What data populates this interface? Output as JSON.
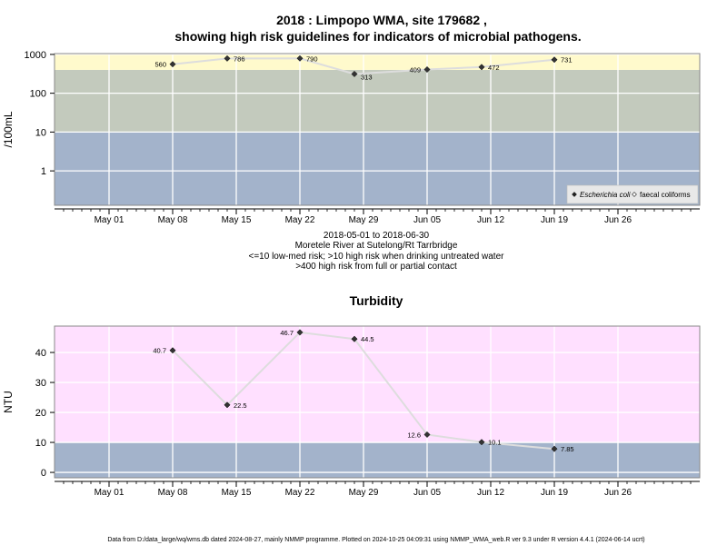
{
  "figure": {
    "title_line1": "2018 : Limpopo WMA, site 179682 ,",
    "title_line2": "showing high risk guidelines for indicators of microbial pathogens.",
    "subtitle_lines": [
      "2018-05-01 to 2018-06-30",
      "Moretele River at Sutelong/Rt Tarrbridge",
      "<=10 low-med risk; >10 high risk when drinking untreated water",
      ">400 high risk from full or partial contact"
    ],
    "footer": "Data from D:/data_large/wq/wms.db dated 2024-08-27, mainly NMMP programme. Plotted on 2024-10-25 04:09:31 using NMMP_WMA_web.R ver 9.3 under R version 4.4.1 (2024-06-14 ucrt)"
  },
  "colors": {
    "band_low": "#a3b3cb",
    "band_mid": "#c3cabd",
    "band_high": "#fffacc",
    "turbidity_high": "#ffe0ff",
    "line": "#dddddd",
    "marker": "#333333"
  },
  "chart_data": [
    {
      "type": "line",
      "title": "",
      "ylabel": "/100mL",
      "y_scale": "log",
      "ylim": [
        0.13,
        1050
      ],
      "xlim": [
        "2018-04-25",
        "2018-07-05"
      ],
      "x_ticks": [
        "May 01",
        "May 08",
        "May 15",
        "May 22",
        "May 29",
        "Jun 05",
        "Jun 12",
        "Jun 19",
        "Jun 26"
      ],
      "x_tick_dates": [
        "2018-05-01",
        "2018-05-08",
        "2018-05-15",
        "2018-05-22",
        "2018-05-29",
        "2018-06-05",
        "2018-06-12",
        "2018-06-19",
        "2018-06-26"
      ],
      "y_ticks": [
        "1",
        "10",
        "100",
        "1000"
      ],
      "y_tick_values": [
        1,
        10,
        100,
        1000
      ],
      "bands": [
        {
          "from": 0.13,
          "to": 10,
          "color": "#a3b3cb"
        },
        {
          "from": 10,
          "to": 400,
          "color": "#c3cabd"
        },
        {
          "from": 400,
          "to": 1050,
          "color": "#fffacc"
        }
      ],
      "grid": true,
      "legend_position": "bottom-right",
      "legend": [
        {
          "label": "Escherichia coli",
          "italic": true,
          "marker": "filled-diamond"
        },
        {
          "label": "faecal coliforms",
          "italic": false,
          "marker": "open-diamond"
        }
      ],
      "series": [
        {
          "name": "Escherichia coli",
          "x": [
            "2018-05-08",
            "2018-05-14",
            "2018-05-22",
            "2018-05-28",
            "2018-06-05",
            "2018-06-11",
            "2018-06-19"
          ],
          "values": [
            560,
            786,
            790,
            313,
            409,
            472,
            731
          ],
          "labels": [
            "560",
            "786",
            "790",
            "313",
            "409",
            "472",
            "731"
          ]
        }
      ]
    },
    {
      "type": "line",
      "title": "Turbidity",
      "ylabel": "NTU",
      "y_scale": "linear",
      "ylim": [
        -1.8,
        48.8
      ],
      "xlim": [
        "2018-04-25",
        "2018-07-05"
      ],
      "x_ticks": [
        "May 01",
        "May 08",
        "May 15",
        "May 22",
        "May 29",
        "Jun 05",
        "Jun 12",
        "Jun 19",
        "Jun 26"
      ],
      "x_tick_dates": [
        "2018-05-01",
        "2018-05-08",
        "2018-05-15",
        "2018-05-22",
        "2018-05-29",
        "2018-06-05",
        "2018-06-12",
        "2018-06-19",
        "2018-06-26"
      ],
      "y_ticks": [
        "0",
        "10",
        "20",
        "30",
        "40"
      ],
      "y_tick_values": [
        0,
        10,
        20,
        30,
        40
      ],
      "bands": [
        {
          "from": -1.8,
          "to": 10,
          "color": "#a3b3cb"
        },
        {
          "from": 10,
          "to": 48.8,
          "color": "#ffe0ff"
        }
      ],
      "grid": true,
      "series": [
        {
          "name": "",
          "x": [
            "2018-05-08",
            "2018-05-14",
            "2018-05-22",
            "2018-05-28",
            "2018-06-05",
            "2018-06-11",
            "2018-06-19"
          ],
          "values": [
            40.7,
            22.5,
            46.7,
            44.5,
            12.6,
            10.1,
            7.85
          ],
          "labels": [
            "40.7",
            "22.5",
            "46.7",
            "44.5",
            "12.6",
            "10.1",
            "7.85"
          ]
        }
      ]
    }
  ]
}
